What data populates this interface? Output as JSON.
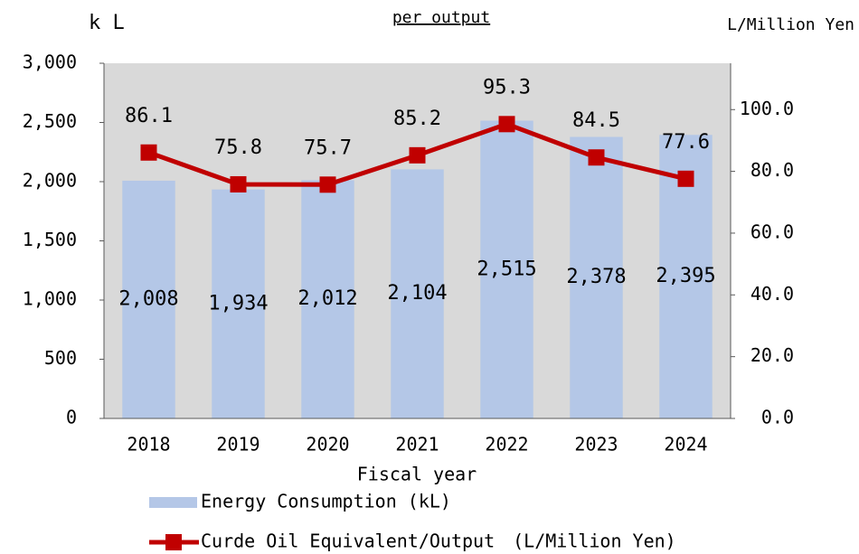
{
  "chart_data": {
    "type": "bar_line",
    "title": "per output",
    "ylabel": "k L",
    "y2label": "L/Million Yen",
    "xlabel": "Fiscal year",
    "categories": [
      "2018",
      "2019",
      "2020",
      "2021",
      "2022",
      "2023",
      "2024"
    ],
    "series": [
      {
        "name": "Energy Consumption (kL)",
        "type": "bar",
        "color": "#b4c7e7",
        "values": [
          2008,
          1934,
          2012,
          2104,
          2515,
          2378,
          2395
        ],
        "value_labels": [
          "2,008",
          "1,934",
          "2,012",
          "2,104",
          "2,515",
          "2,378",
          "2,395"
        ]
      },
      {
        "name": "Curde Oil Equivalent/Output　(L/Million Yen)",
        "type": "line",
        "axis": "y2",
        "color": "#c00000",
        "values": [
          86.1,
          75.8,
          75.7,
          85.2,
          95.3,
          84.5,
          77.6
        ]
      }
    ],
    "ylim": [
      0,
      3000
    ],
    "yticks": [
      0,
      500,
      {
        "value": 1000,
        "label": "1,000"
      },
      {
        "value": 1500,
        "label": "1,500"
      },
      {
        "value": 2000,
        "label": "2,000"
      },
      {
        "value": 2500,
        "label": "2,500"
      },
      {
        "value": 3000,
        "label": "3,000"
      }
    ],
    "y2lim": [
      0,
      115
    ],
    "y2ticks": [
      {
        "value": 0,
        "label": "0.0"
      },
      {
        "value": 20,
        "label": "20.0"
      },
      {
        "value": 40,
        "label": "40.0"
      },
      {
        "value": 60,
        "label": "60.0"
      },
      {
        "value": 80,
        "label": "80.0"
      },
      {
        "value": 100,
        "label": "100.0"
      }
    ]
  }
}
